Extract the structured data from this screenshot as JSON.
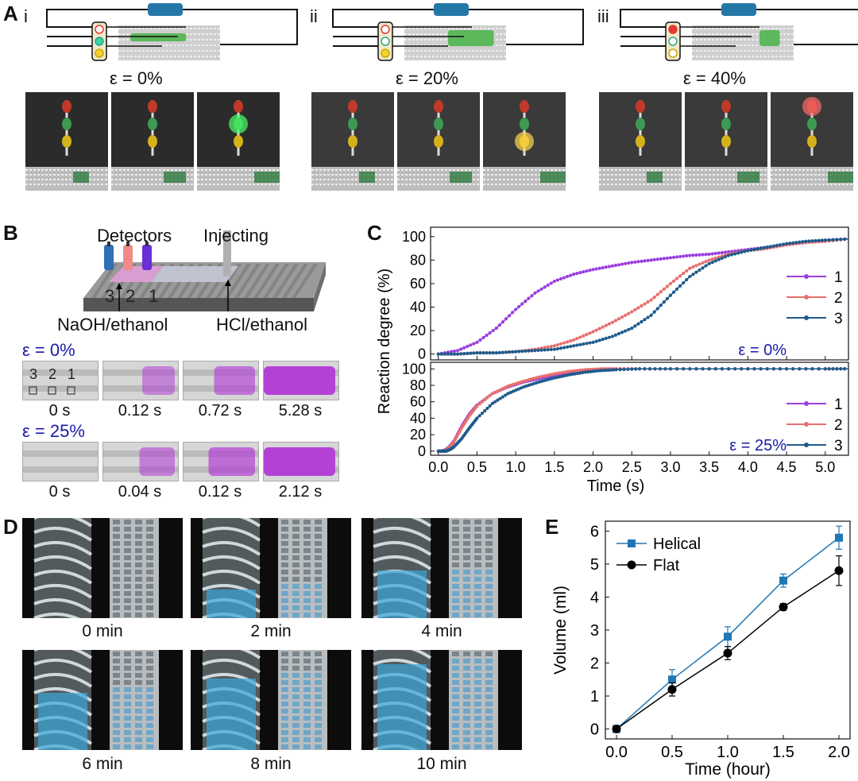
{
  "panelA": {
    "label": "A",
    "columns": [
      {
        "roman": "i",
        "strain": "ε = 0%",
        "green_fill": 0.55,
        "lit": [
          "none",
          "none",
          "green"
        ]
      },
      {
        "roman": "ii",
        "strain": "ε = 20%",
        "green_fill": 0.45,
        "lit": [
          "none",
          "none",
          "yellow"
        ]
      },
      {
        "roman": "iii",
        "strain": "ε = 40%",
        "green_fill": 0.2,
        "lit": [
          "none",
          "none",
          "red"
        ]
      }
    ],
    "colors": {
      "resistor": "#2577a8",
      "channel_green": "#5bb85b",
      "led_red": "#e53935",
      "led_green": "#39d3a6",
      "led_yellow": "#f2d22e"
    }
  },
  "panelB": {
    "label": "B",
    "detectors": "Detectors",
    "injecting": "Injecting",
    "naoh": "NaOH/ethanol",
    "hcl": "HCl/ethanol",
    "nums": [
      "3",
      "2",
      "1"
    ],
    "rows": [
      {
        "strain": "ε = 0%",
        "times": [
          "0 s",
          "0.12 s",
          "0.72 s",
          "5.28 s"
        ],
        "intensity": [
          0,
          0.3,
          0.45,
          1
        ]
      },
      {
        "strain": "ε = 25%",
        "times": [
          "0 s",
          "0.04 s",
          "0.12 s",
          "2.12 s"
        ],
        "intensity": [
          0,
          0.35,
          0.55,
          1
        ]
      }
    ],
    "colors": {
      "purple": "#b23ad6",
      "det1": "#2f6fb5",
      "det2": "#f08a8a",
      "det3": "#6a2fd6"
    }
  },
  "panelC": {
    "label": "C",
    "chart_data": {
      "type": "line",
      "xlabel": "Time (s)",
      "ylabel": "Reaction degree (%)",
      "xlim": [
        -0.1,
        5.3
      ],
      "ylim": [
        -5,
        108
      ],
      "xticks": [
        "0.0",
        "0.5",
        "1.0",
        "1.5",
        "2.0",
        "2.5",
        "3.0",
        "3.5",
        "4.0",
        "4.5",
        "5.0"
      ],
      "yticks": [
        "0",
        "20",
        "40",
        "60",
        "80",
        "100"
      ],
      "subplots": [
        {
          "annotation": "ε = 0%",
          "series": [
            {
              "name": "1",
              "color": "#9b3fe0",
              "x": [
                0,
                0.25,
                0.5,
                0.75,
                1.0,
                1.25,
                1.5,
                1.75,
                2.0,
                2.25,
                2.5,
                2.75,
                3.0,
                3.25,
                3.5,
                3.75,
                4.0,
                4.25,
                4.5,
                4.75,
                5.0,
                5.3
              ],
              "y": [
                0,
                3,
                10,
                22,
                38,
                52,
                62,
                68,
                72,
                75,
                78,
                80,
                82,
                84,
                85,
                87,
                89,
                91,
                93,
                95,
                97,
                98
              ]
            },
            {
              "name": "2",
              "color": "#e8706e",
              "x": [
                0,
                0.25,
                0.5,
                0.75,
                1.0,
                1.25,
                1.5,
                1.75,
                2.0,
                2.25,
                2.5,
                2.75,
                3.0,
                3.25,
                3.5,
                3.75,
                4.0,
                4.25,
                4.5,
                4.75,
                5.0,
                5.3
              ],
              "y": [
                0,
                0,
                1,
                1,
                2,
                4,
                7,
                12,
                19,
                27,
                36,
                46,
                60,
                73,
                80,
                85,
                88,
                90,
                93,
                95,
                96,
                98
              ]
            },
            {
              "name": "3",
              "color": "#1f5b8c",
              "x": [
                0,
                0.25,
                0.5,
                0.75,
                1.0,
                1.25,
                1.5,
                1.75,
                2.0,
                2.25,
                2.5,
                2.75,
                3.0,
                3.25,
                3.5,
                3.75,
                4.0,
                4.25,
                4.5,
                4.75,
                5.0,
                5.3
              ],
              "y": [
                0,
                0,
                1,
                1,
                2,
                3,
                4,
                7,
                10,
                15,
                22,
                33,
                50,
                66,
                77,
                84,
                88,
                91,
                94,
                96,
                97,
                98
              ]
            }
          ]
        },
        {
          "annotation": "ε = 25%",
          "series": [
            {
              "name": "1",
              "color": "#9b3fe0",
              "x": [
                0,
                0.05,
                0.1,
                0.15,
                0.2,
                0.3,
                0.4,
                0.5,
                0.7,
                0.9,
                1.1,
                1.3,
                1.5,
                1.7,
                1.9,
                2.1,
                2.3,
                2.6,
                3.0,
                3.5,
                4.0,
                4.5,
                5.0,
                5.3
              ],
              "y": [
                0,
                0,
                2,
                6,
                12,
                30,
                45,
                56,
                70,
                78,
                84,
                88,
                92,
                95,
                97,
                99,
                100,
                100,
                100,
                100,
                100,
                100,
                100,
                100
              ]
            },
            {
              "name": "2",
              "color": "#e8706e",
              "x": [
                0,
                0.05,
                0.1,
                0.15,
                0.2,
                0.3,
                0.4,
                0.5,
                0.7,
                0.9,
                1.1,
                1.3,
                1.5,
                1.7,
                1.9,
                2.1,
                2.3,
                2.6,
                3.0,
                3.5,
                4.0,
                4.5,
                5.0,
                5.3
              ],
              "y": [
                0,
                0,
                1,
                5,
                11,
                28,
                43,
                55,
                70,
                79,
                85,
                90,
                94,
                97,
                99,
                100,
                100,
                100,
                100,
                100,
                100,
                100,
                100,
                100
              ]
            },
            {
              "name": "3",
              "color": "#1f5b8c",
              "x": [
                0,
                0.05,
                0.1,
                0.15,
                0.2,
                0.3,
                0.4,
                0.5,
                0.7,
                0.9,
                1.1,
                1.3,
                1.5,
                1.7,
                1.9,
                2.1,
                2.3,
                2.6,
                3.0,
                3.5,
                4.0,
                4.5,
                5.0,
                5.3
              ],
              "y": [
                0,
                0,
                0,
                2,
                5,
                15,
                28,
                40,
                58,
                70,
                78,
                84,
                89,
                93,
                96,
                98,
                99,
                100,
                100,
                100,
                100,
                100,
                100,
                100
              ]
            }
          ]
        }
      ]
    }
  },
  "panelD": {
    "label": "D",
    "times": [
      "0 min",
      "2 min",
      "4 min",
      "6 min",
      "8 min",
      "10 min"
    ],
    "blue_level": [
      0,
      0.3,
      0.5,
      0.6,
      0.75,
      0.9
    ],
    "colors": {
      "blue": "#3aa6d8"
    }
  },
  "panelE": {
    "label": "E",
    "chart_data": {
      "type": "line",
      "xlabel": "Time (hour)",
      "ylabel": "Volume (ml)",
      "xlim": [
        -0.1,
        2.1
      ],
      "ylim": [
        -0.3,
        6.3
      ],
      "xticks": [
        "0.0",
        "0.5",
        "1.0",
        "1.5",
        "2.0"
      ],
      "yticks": [
        "0",
        "1",
        "2",
        "3",
        "4",
        "5",
        "6"
      ],
      "legend": "top-left",
      "series": [
        {
          "name": "Helical",
          "marker": "square",
          "color": "#1f77b4",
          "x": [
            0,
            0.5,
            1.0,
            1.5,
            2.0
          ],
          "y": [
            0,
            1.5,
            2.8,
            4.5,
            5.8
          ],
          "err": [
            0.05,
            0.3,
            0.3,
            0.2,
            0.35
          ]
        },
        {
          "name": "Flat",
          "marker": "circle",
          "color": "#000000",
          "x": [
            0,
            0.5,
            1.0,
            1.5,
            2.0
          ],
          "y": [
            0,
            1.2,
            2.3,
            3.7,
            4.8
          ],
          "err": [
            0.05,
            0.2,
            0.2,
            0.1,
            0.45
          ]
        }
      ]
    }
  }
}
